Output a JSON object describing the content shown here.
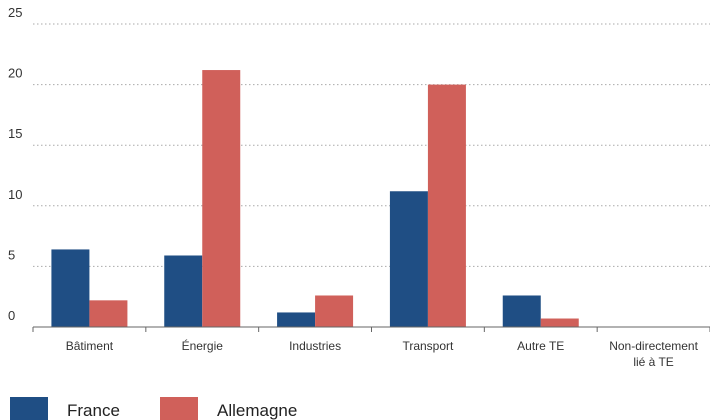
{
  "chart_data": {
    "type": "bar",
    "categories": [
      [
        "Bâtiment"
      ],
      [
        "Énergie"
      ],
      [
        "Industries"
      ],
      [
        "Transport"
      ],
      [
        "Autre TE"
      ],
      [
        "Non-directement",
        "lié à TE"
      ]
    ],
    "series": [
      {
        "name": "France",
        "color": "#1f4e84",
        "values": [
          6.4,
          5.9,
          1.2,
          11.2,
          2.6,
          0
        ]
      },
      {
        "name": "Allemagne",
        "color": "#d0605a",
        "values": [
          2.2,
          21.2,
          2.6,
          20.0,
          0.7,
          0
        ]
      }
    ],
    "ylim": [
      0,
      25
    ],
    "yticks": [
      "0",
      "5",
      "10",
      "15",
      "20",
      "25"
    ],
    "grid": true,
    "legend_position": "bottom-left",
    "title": "",
    "xlabel": "",
    "ylabel": ""
  }
}
